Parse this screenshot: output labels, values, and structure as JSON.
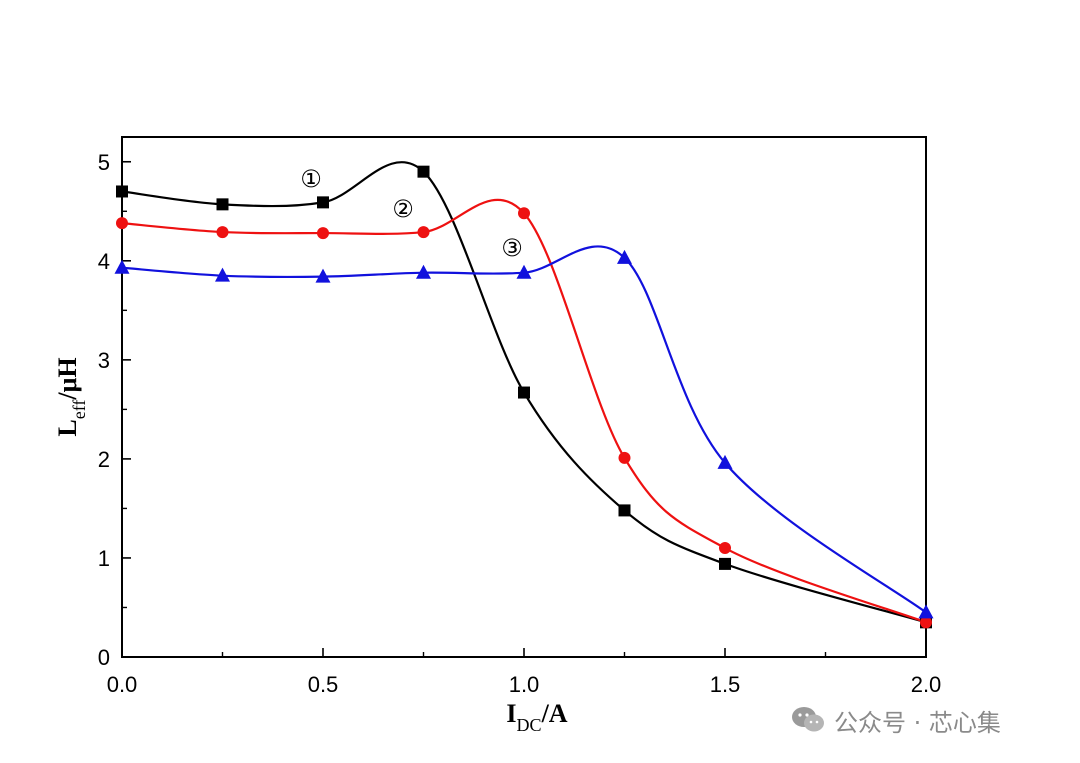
{
  "chart_data": {
    "type": "line",
    "xlabel": "I",
    "xlabel_sub": "DC",
    "xlabel_suffix": "/A",
    "ylabel": "L",
    "ylabel_sub": "eff",
    "ylabel_suffix": "/μH",
    "xlim": [
      0,
      2.0
    ],
    "ylim": [
      0,
      5.25
    ],
    "x_ticks": [
      "0.0",
      "0.5",
      "1.0",
      "1.5",
      "2.0"
    ],
    "y_ticks": [
      "0",
      "1",
      "2",
      "3",
      "4",
      "5"
    ],
    "grid": false,
    "series": [
      {
        "name": "①",
        "color": "#000000",
        "marker": "square",
        "x": [
          0.0,
          0.25,
          0.5,
          0.75,
          1.0,
          1.25,
          1.5,
          2.0
        ],
        "y": [
          4.7,
          4.57,
          4.59,
          4.9,
          2.67,
          1.48,
          0.94,
          0.35
        ]
      },
      {
        "name": "②",
        "color": "#ee1111",
        "marker": "circle",
        "x": [
          0.0,
          0.25,
          0.5,
          0.75,
          1.0,
          1.25,
          1.5,
          2.0
        ],
        "y": [
          4.38,
          4.29,
          4.28,
          4.29,
          4.48,
          2.01,
          1.1,
          0.35
        ]
      },
      {
        "name": "③",
        "color": "#1111dd",
        "marker": "triangle",
        "x": [
          0.0,
          0.25,
          0.5,
          0.75,
          1.0,
          1.25,
          1.5,
          2.0
        ],
        "y": [
          3.93,
          3.85,
          3.84,
          3.88,
          3.88,
          4.03,
          1.96,
          0.45
        ]
      }
    ],
    "annotations": [
      "①",
      "②",
      "③"
    ]
  },
  "watermark": {
    "text": "公众号 · 芯心集",
    "icon": "wechat-icon"
  }
}
